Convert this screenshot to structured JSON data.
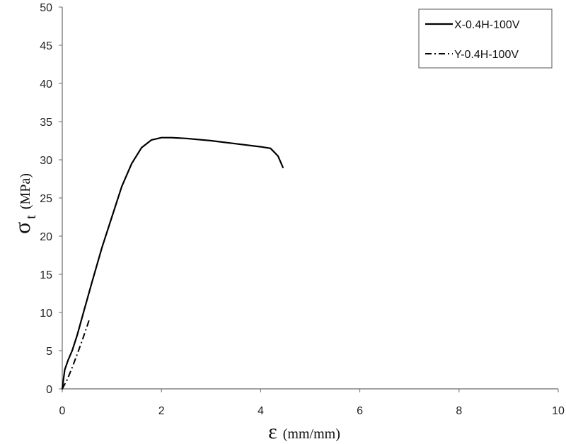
{
  "chart_data": {
    "type": "line",
    "xlabel_symbol": "ε",
    "xlabel_unit": "(mm/mm)",
    "ylabel_symbol": "σ",
    "ylabel_subscript": "t",
    "ylabel_unit": "(MPa)",
    "xlim": [
      0,
      10
    ],
    "ylim": [
      0,
      50
    ],
    "xticks": [
      "0",
      "2",
      "4",
      "6",
      "8",
      "10"
    ],
    "yticks": [
      "0",
      "5",
      "10",
      "15",
      "20",
      "25",
      "30",
      "35",
      "40",
      "45",
      "50"
    ],
    "grid": false,
    "legend_position": "top-right",
    "series": [
      {
        "name": "X-0.4H-100V",
        "style": "solid",
        "color": "#000000",
        "x": [
          0,
          0.05,
          0.12,
          0.2,
          0.3,
          0.45,
          0.6,
          0.8,
          1.0,
          1.2,
          1.4,
          1.6,
          1.8,
          2.0,
          2.2,
          2.5,
          3.0,
          3.5,
          4.0,
          4.2,
          4.35,
          4.45
        ],
        "y": [
          0,
          2.5,
          3.8,
          5.0,
          7.0,
          10.5,
          14.0,
          18.5,
          22.5,
          26.5,
          29.5,
          31.6,
          32.6,
          32.9,
          32.9,
          32.8,
          32.5,
          32.1,
          31.7,
          31.5,
          30.5,
          29.0
        ]
      },
      {
        "name": "Y-0.4H-100V",
        "style": "dashdot",
        "color": "#000000",
        "x": [
          0,
          0.1,
          0.2,
          0.3,
          0.4,
          0.5,
          0.55
        ],
        "y": [
          0,
          1.2,
          2.8,
          4.5,
          6.3,
          8.2,
          9.2
        ]
      }
    ]
  }
}
